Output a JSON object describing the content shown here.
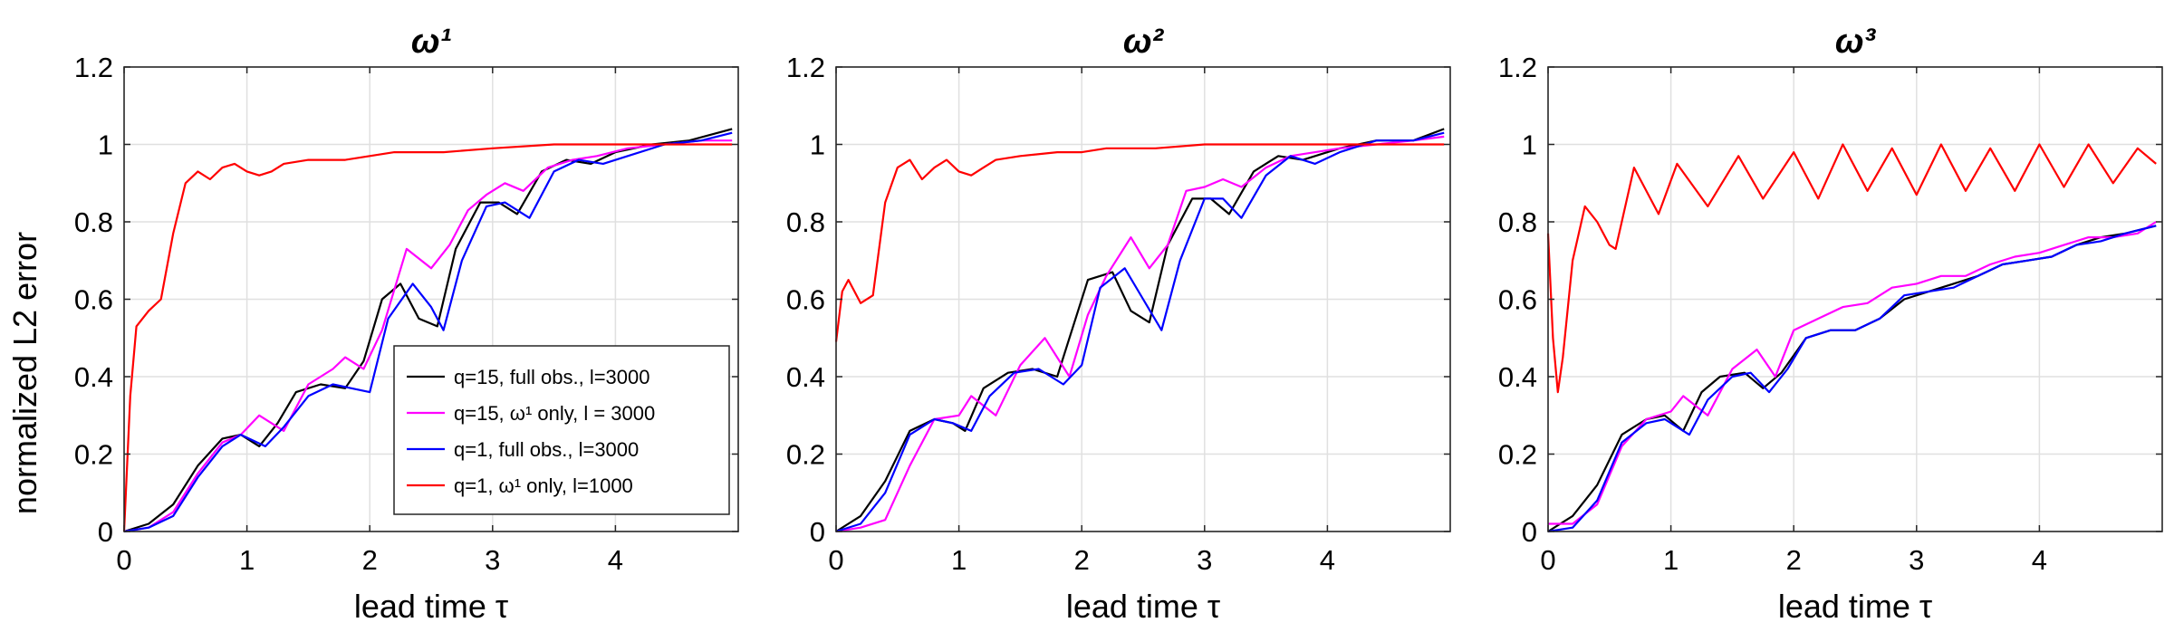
{
  "ylabel": "normalized L2 error",
  "legend": {
    "entries": [
      {
        "label": "q=15, full obs., l=3000",
        "color": "#000000"
      },
      {
        "label": "q=15, ω¹ only, l = 3000",
        "color": "#ff00ff"
      },
      {
        "label": "q=1, full obs., l=3000",
        "color": "#0000ff"
      },
      {
        "label": "q=1, ω¹ only, l=1000",
        "color": "#ff0000"
      }
    ]
  },
  "chart_data": [
    {
      "type": "line",
      "title": "ω¹",
      "xlabel": "lead time τ",
      "ylabel": "normalized L2 error",
      "xlim": [
        0,
        5
      ],
      "ylim": [
        0,
        1.2
      ],
      "xticks": [
        0,
        1,
        2,
        3,
        4
      ],
      "yticks": [
        0,
        0.2,
        0.4,
        0.6,
        0.8,
        1,
        1.2
      ],
      "grid": true,
      "legend_position": "lower-right",
      "series": [
        {
          "name": "q=15, full obs., l=3000",
          "color": "#000000",
          "x": [
            0,
            0.2,
            0.4,
            0.6,
            0.8,
            0.95,
            1.1,
            1.25,
            1.4,
            1.6,
            1.8,
            1.95,
            2.1,
            2.25,
            2.4,
            2.55,
            2.7,
            2.9,
            3.05,
            3.2,
            3.4,
            3.6,
            3.8,
            4.0,
            4.3,
            4.6,
            4.95
          ],
          "y": [
            0,
            0.02,
            0.07,
            0.17,
            0.24,
            0.25,
            0.22,
            0.28,
            0.36,
            0.38,
            0.37,
            0.44,
            0.6,
            0.64,
            0.55,
            0.53,
            0.73,
            0.85,
            0.85,
            0.82,
            0.93,
            0.96,
            0.95,
            0.98,
            1.0,
            1.01,
            1.04
          ]
        },
        {
          "name": "q=15, ω¹ only, l = 3000",
          "color": "#ff00ff",
          "x": [
            0,
            0.2,
            0.4,
            0.6,
            0.8,
            0.95,
            1.1,
            1.3,
            1.5,
            1.7,
            1.8,
            1.95,
            2.1,
            2.3,
            2.5,
            2.65,
            2.8,
            2.95,
            3.1,
            3.25,
            3.45,
            3.65,
            3.85,
            4.1,
            4.4,
            4.7,
            4.95
          ],
          "y": [
            0,
            0.01,
            0.05,
            0.15,
            0.23,
            0.25,
            0.3,
            0.26,
            0.38,
            0.42,
            0.45,
            0.42,
            0.52,
            0.73,
            0.68,
            0.74,
            0.83,
            0.87,
            0.9,
            0.88,
            0.94,
            0.96,
            0.97,
            0.99,
            1.0,
            1.01,
            1.01
          ]
        },
        {
          "name": "q=1, full obs., l=3000",
          "color": "#0000ff",
          "x": [
            0,
            0.2,
            0.4,
            0.6,
            0.8,
            0.95,
            1.15,
            1.3,
            1.5,
            1.7,
            1.85,
            2.0,
            2.15,
            2.35,
            2.5,
            2.6,
            2.75,
            2.95,
            3.1,
            3.3,
            3.5,
            3.7,
            3.9,
            4.1,
            4.4,
            4.7,
            4.95
          ],
          "y": [
            0,
            0.01,
            0.04,
            0.14,
            0.22,
            0.25,
            0.22,
            0.27,
            0.35,
            0.38,
            0.37,
            0.36,
            0.55,
            0.64,
            0.58,
            0.52,
            0.7,
            0.84,
            0.85,
            0.81,
            0.93,
            0.96,
            0.95,
            0.97,
            1.0,
            1.01,
            1.03
          ]
        },
        {
          "name": "q=1, ω¹ only, l=1000",
          "color": "#ff0000",
          "x": [
            0,
            0.05,
            0.1,
            0.2,
            0.3,
            0.4,
            0.5,
            0.6,
            0.7,
            0.8,
            0.9,
            1.0,
            1.1,
            1.2,
            1.3,
            1.5,
            1.8,
            2.0,
            2.2,
            2.6,
            3.0,
            3.5,
            4.0,
            4.5,
            4.95
          ],
          "y": [
            0,
            0.35,
            0.53,
            0.57,
            0.6,
            0.77,
            0.9,
            0.93,
            0.91,
            0.94,
            0.95,
            0.93,
            0.92,
            0.93,
            0.95,
            0.96,
            0.96,
            0.97,
            0.98,
            0.98,
            0.99,
            1.0,
            1.0,
            1.0,
            1.0
          ]
        }
      ]
    },
    {
      "type": "line",
      "title": "ω²",
      "xlabel": "lead time τ",
      "ylabel": "",
      "xlim": [
        0,
        5
      ],
      "ylim": [
        0,
        1.2
      ],
      "xticks": [
        0,
        1,
        2,
        3,
        4
      ],
      "yticks": [
        0,
        0.2,
        0.4,
        0.6,
        0.8,
        1,
        1.2
      ],
      "grid": true,
      "series": [
        {
          "name": "q=15, full obs., l=3000",
          "color": "#000000",
          "x": [
            0,
            0.2,
            0.4,
            0.6,
            0.8,
            0.95,
            1.05,
            1.2,
            1.4,
            1.6,
            1.8,
            1.9,
            2.05,
            2.25,
            2.4,
            2.55,
            2.7,
            2.9,
            3.05,
            3.2,
            3.4,
            3.6,
            3.8,
            4.1,
            4.4,
            4.7,
            4.95
          ],
          "y": [
            0,
            0.04,
            0.13,
            0.26,
            0.29,
            0.28,
            0.26,
            0.37,
            0.41,
            0.42,
            0.4,
            0.5,
            0.65,
            0.67,
            0.57,
            0.54,
            0.74,
            0.86,
            0.86,
            0.82,
            0.93,
            0.97,
            0.96,
            0.99,
            1.01,
            1.01,
            1.04
          ]
        },
        {
          "name": "q=15, ω¹ only, l = 3000",
          "color": "#ff00ff",
          "x": [
            0,
            0.2,
            0.4,
            0.6,
            0.8,
            1.0,
            1.1,
            1.3,
            1.5,
            1.7,
            1.9,
            2.05,
            2.2,
            2.4,
            2.55,
            2.7,
            2.85,
            3.0,
            3.15,
            3.3,
            3.5,
            3.7,
            3.9,
            4.1,
            4.4,
            4.7,
            4.95
          ],
          "y": [
            0,
            0.01,
            0.03,
            0.17,
            0.29,
            0.3,
            0.35,
            0.3,
            0.43,
            0.5,
            0.4,
            0.56,
            0.66,
            0.76,
            0.68,
            0.74,
            0.88,
            0.89,
            0.91,
            0.89,
            0.94,
            0.97,
            0.98,
            0.99,
            1.0,
            1.01,
            1.02
          ]
        },
        {
          "name": "q=1, full obs., l=3000",
          "color": "#0000ff",
          "x": [
            0,
            0.2,
            0.4,
            0.6,
            0.8,
            0.95,
            1.1,
            1.25,
            1.45,
            1.65,
            1.85,
            2.0,
            2.15,
            2.35,
            2.5,
            2.65,
            2.8,
            3.0,
            3.15,
            3.3,
            3.5,
            3.7,
            3.9,
            4.1,
            4.4,
            4.7,
            4.95
          ],
          "y": [
            0,
            0.02,
            0.1,
            0.25,
            0.29,
            0.28,
            0.26,
            0.35,
            0.41,
            0.42,
            0.38,
            0.43,
            0.63,
            0.68,
            0.6,
            0.52,
            0.7,
            0.86,
            0.86,
            0.81,
            0.92,
            0.97,
            0.95,
            0.98,
            1.01,
            1.01,
            1.03
          ]
        },
        {
          "name": "q=1, ω¹ only, l=1000",
          "color": "#ff0000",
          "x": [
            0,
            0.05,
            0.1,
            0.2,
            0.3,
            0.4,
            0.5,
            0.6,
            0.7,
            0.8,
            0.9,
            1.0,
            1.1,
            1.2,
            1.3,
            1.5,
            1.8,
            2.0,
            2.2,
            2.6,
            3.0,
            3.5,
            4.0,
            4.5,
            4.95
          ],
          "y": [
            0.49,
            0.62,
            0.65,
            0.59,
            0.61,
            0.85,
            0.94,
            0.96,
            0.91,
            0.94,
            0.96,
            0.93,
            0.92,
            0.94,
            0.96,
            0.97,
            0.98,
            0.98,
            0.99,
            0.99,
            1.0,
            1.0,
            1.0,
            1.0,
            1.0
          ]
        }
      ]
    },
    {
      "type": "line",
      "title": "ω³",
      "xlabel": "lead time τ",
      "ylabel": "",
      "xlim": [
        0,
        5
      ],
      "ylim": [
        0,
        1.2
      ],
      "xticks": [
        0,
        1,
        2,
        3,
        4
      ],
      "yticks": [
        0,
        0.2,
        0.4,
        0.6,
        0.8,
        1,
        1.2
      ],
      "grid": true,
      "series": [
        {
          "name": "q=15, full obs., l=3000",
          "color": "#000000",
          "x": [
            0,
            0.2,
            0.4,
            0.6,
            0.8,
            0.95,
            1.1,
            1.25,
            1.4,
            1.6,
            1.75,
            1.9,
            2.1,
            2.3,
            2.5,
            2.7,
            2.9,
            3.1,
            3.3,
            3.5,
            3.7,
            3.9,
            4.1,
            4.3,
            4.5,
            4.7,
            4.95
          ],
          "y": [
            0,
            0.04,
            0.12,
            0.25,
            0.29,
            0.3,
            0.26,
            0.36,
            0.4,
            0.41,
            0.37,
            0.41,
            0.5,
            0.52,
            0.52,
            0.55,
            0.6,
            0.62,
            0.64,
            0.66,
            0.69,
            0.7,
            0.71,
            0.74,
            0.76,
            0.77,
            0.79
          ]
        },
        {
          "name": "q=15, ω¹ only, l = 3000",
          "color": "#ff00ff",
          "x": [
            0,
            0.2,
            0.4,
            0.6,
            0.8,
            1.0,
            1.1,
            1.3,
            1.5,
            1.7,
            1.85,
            2.0,
            2.2,
            2.4,
            2.6,
            2.8,
            3.0,
            3.2,
            3.4,
            3.6,
            3.8,
            4.0,
            4.2,
            4.4,
            4.6,
            4.8,
            4.95
          ],
          "y": [
            0.02,
            0.02,
            0.07,
            0.22,
            0.29,
            0.31,
            0.35,
            0.3,
            0.42,
            0.47,
            0.4,
            0.52,
            0.55,
            0.58,
            0.59,
            0.63,
            0.64,
            0.66,
            0.66,
            0.69,
            0.71,
            0.72,
            0.74,
            0.76,
            0.76,
            0.77,
            0.8
          ]
        },
        {
          "name": "q=1, full obs., l=3000",
          "color": "#0000ff",
          "x": [
            0,
            0.2,
            0.4,
            0.6,
            0.8,
            0.95,
            1.15,
            1.3,
            1.5,
            1.65,
            1.8,
            1.95,
            2.1,
            2.3,
            2.5,
            2.7,
            2.9,
            3.1,
            3.3,
            3.5,
            3.7,
            3.9,
            4.1,
            4.3,
            4.5,
            4.7,
            4.95
          ],
          "y": [
            0,
            0.01,
            0.08,
            0.23,
            0.28,
            0.29,
            0.25,
            0.34,
            0.4,
            0.41,
            0.36,
            0.42,
            0.5,
            0.52,
            0.52,
            0.55,
            0.61,
            0.62,
            0.63,
            0.66,
            0.69,
            0.7,
            0.71,
            0.74,
            0.75,
            0.77,
            0.79
          ]
        },
        {
          "name": "q=1, ω¹ only, l=1000",
          "color": "#ff0000",
          "x": [
            0,
            0.04,
            0.08,
            0.12,
            0.2,
            0.3,
            0.4,
            0.5,
            0.55,
            0.7,
            0.9,
            1.05,
            1.3,
            1.55,
            1.75,
            2.0,
            2.2,
            2.4,
            2.6,
            2.8,
            3.0,
            3.2,
            3.4,
            3.6,
            3.8,
            4.0,
            4.2,
            4.4,
            4.6,
            4.8,
            4.95
          ],
          "y": [
            0.77,
            0.5,
            0.36,
            0.45,
            0.7,
            0.84,
            0.8,
            0.74,
            0.73,
            0.94,
            0.82,
            0.95,
            0.84,
            0.97,
            0.86,
            0.98,
            0.86,
            1.0,
            0.88,
            0.99,
            0.87,
            1.0,
            0.88,
            0.99,
            0.88,
            1.0,
            0.89,
            1.0,
            0.9,
            0.99,
            0.95
          ]
        }
      ]
    }
  ]
}
